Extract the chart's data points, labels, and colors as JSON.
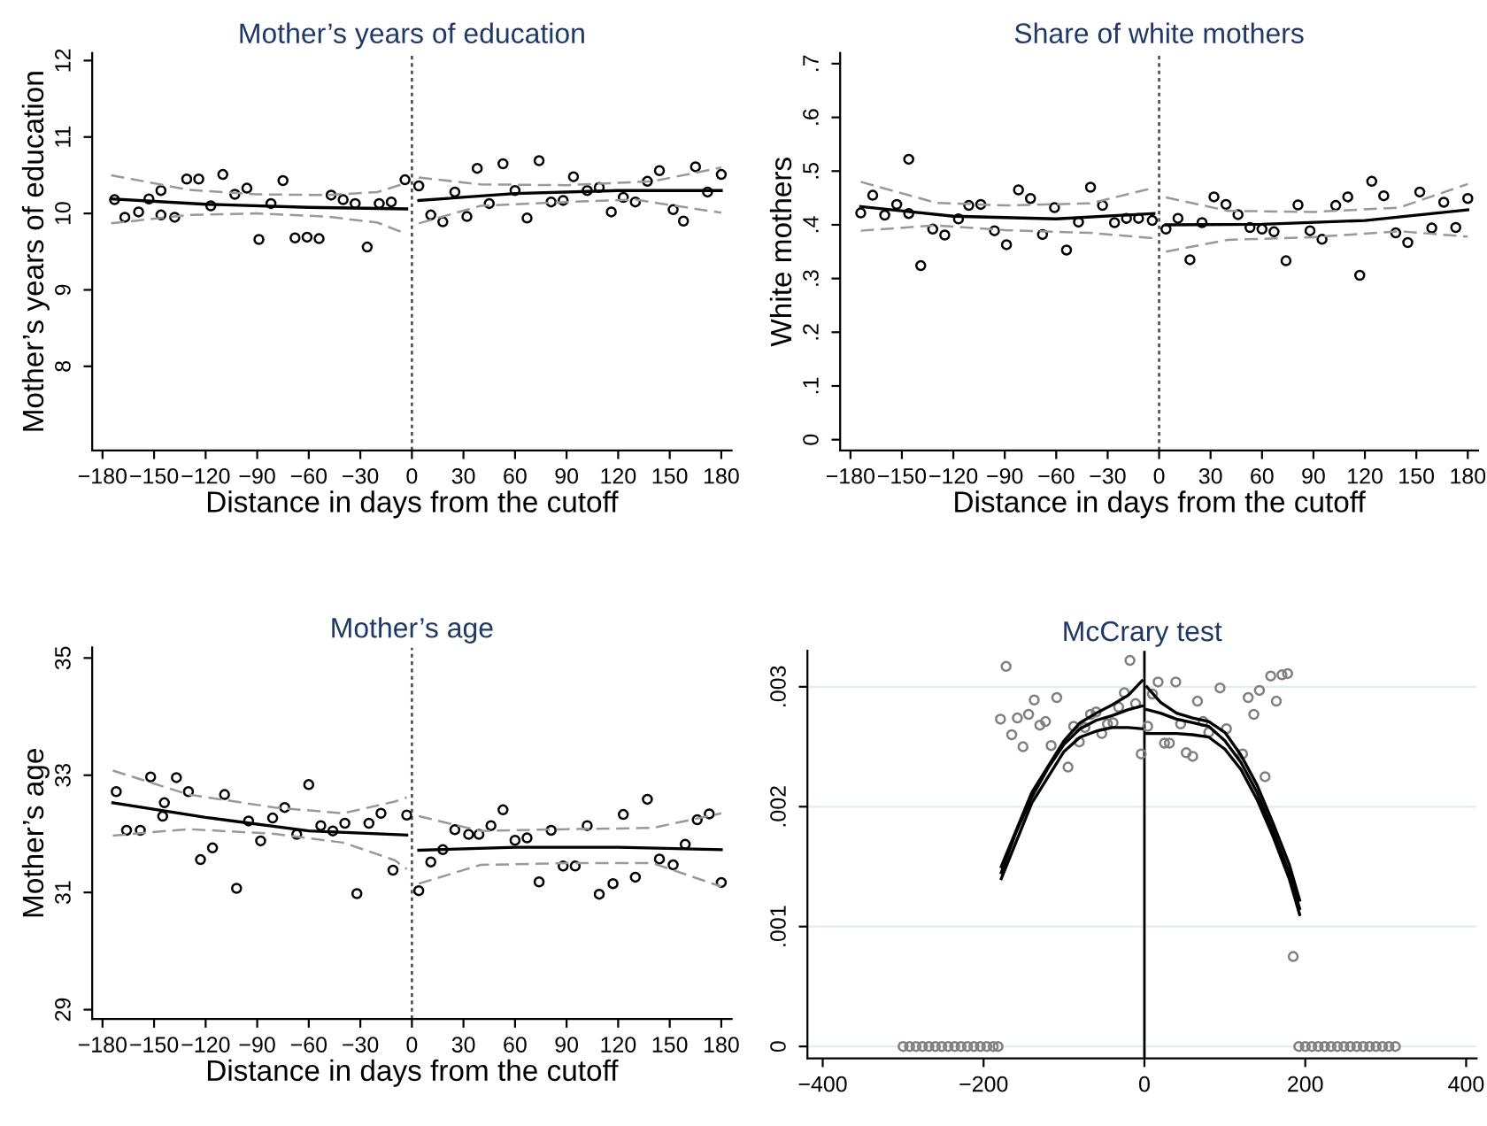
{
  "chart_data": [
    {
      "type": "scatter",
      "title": "Mother’s years of education",
      "xlabel": "Distance in days from the cutoff",
      "ylabel": "Mother’s years of education",
      "xlim": [
        -186,
        186
      ],
      "ylim": [
        6.9,
        12.1
      ],
      "xticks": [
        {
          "value": -180,
          "label": "−180"
        },
        {
          "value": -150,
          "label": "−150"
        },
        {
          "value": -120,
          "label": "−120"
        },
        {
          "value": -90,
          "label": "−90"
        },
        {
          "value": -60,
          "label": "−60"
        },
        {
          "value": -30,
          "label": "−30"
        },
        0,
        30,
        60,
        90,
        120,
        150,
        180
      ],
      "yticks": [
        8,
        9,
        10,
        11,
        12
      ],
      "ref_lines": [
        {
          "axis": "x",
          "value": 0,
          "label": null,
          "color": "#555555",
          "line_style": "dotted"
        }
      ],
      "series": [
        {
          "marker": "circle",
          "color": "#000000",
          "x": [
            -173,
            -167,
            -159,
            -153,
            -146,
            -146,
            -138,
            -131,
            -124,
            -117,
            -110,
            -103,
            -96,
            -89,
            -82,
            -75,
            -68,
            -61,
            -54,
            -47,
            -40,
            -33,
            -26,
            -19,
            -12,
            -4,
            4,
            11,
            18,
            25,
            32,
            38,
            45,
            53,
            60,
            67,
            74,
            81,
            88,
            94,
            102,
            109,
            116,
            123,
            130,
            137,
            144,
            152,
            158,
            165,
            172,
            180
          ],
          "values": [
            10.18,
            9.95,
            10.02,
            10.19,
            10.3,
            9.98,
            9.95,
            10.45,
            10.45,
            10.1,
            10.51,
            10.25,
            10.33,
            9.66,
            10.13,
            10.43,
            9.68,
            9.69,
            9.67,
            10.24,
            10.18,
            10.13,
            9.56,
            10.13,
            10.15,
            10.44,
            10.36,
            9.98,
            9.89,
            10.28,
            9.96,
            10.59,
            10.13,
            10.65,
            10.3,
            9.94,
            10.69,
            10.15,
            10.17,
            10.48,
            10.3,
            10.34,
            10.02,
            10.21,
            10.15,
            10.42,
            10.56,
            10.05,
            9.9,
            10.61,
            10.28,
            10.51
          ]
        },
        {
          "type": "line",
          "color": "#000000",
          "line_style": "solid",
          "x": [
            -175,
            -120,
            -60,
            -3
          ],
          "values": [
            10.19,
            10.12,
            10.08,
            10.06
          ]
        },
        {
          "type": "line",
          "color": "#999999",
          "line_style": "dashed",
          "x": [
            -175,
            -130,
            -90,
            -50,
            -20,
            -3
          ],
          "values": [
            10.5,
            10.31,
            10.25,
            10.24,
            10.28,
            10.4
          ]
        },
        {
          "type": "line",
          "color": "#999999",
          "line_style": "dashed",
          "x": [
            -175,
            -130,
            -90,
            -50,
            -20,
            -3
          ],
          "values": [
            9.87,
            9.98,
            10.0,
            9.96,
            9.88,
            9.73
          ]
        },
        {
          "type": "line",
          "color": "#000000",
          "line_style": "solid",
          "x": [
            4,
            60,
            120,
            180
          ],
          "values": [
            10.17,
            10.26,
            10.3,
            10.3
          ]
        },
        {
          "type": "line",
          "color": "#999999",
          "line_style": "dashed",
          "x": [
            4,
            40,
            90,
            140,
            180
          ],
          "values": [
            10.47,
            10.38,
            10.37,
            10.42,
            10.6
          ]
        },
        {
          "type": "line",
          "color": "#999999",
          "line_style": "dashed",
          "x": [
            4,
            40,
            90,
            130,
            180
          ],
          "values": [
            9.87,
            10.1,
            10.15,
            10.18,
            10.01
          ]
        }
      ]
    },
    {
      "type": "scatter",
      "title": "Share of white mothers",
      "xlabel": "Distance in days from the cutoff",
      "ylabel": "White mothers",
      "xlim": [
        -186,
        186
      ],
      "ylim": [
        -0.02,
        0.72
      ],
      "xticks": [
        {
          "value": -180,
          "label": "−180"
        },
        {
          "value": -150,
          "label": "−150"
        },
        {
          "value": -120,
          "label": "−120"
        },
        {
          "value": -90,
          "label": "−90"
        },
        {
          "value": -60,
          "label": "−60"
        },
        {
          "value": -30,
          "label": "−30"
        },
        0,
        30,
        60,
        90,
        120,
        150,
        180
      ],
      "yticks": [
        0,
        {
          "value": 0.1,
          "label": ".1"
        },
        {
          "value": 0.2,
          "label": ".2"
        },
        {
          "value": 0.3,
          "label": ".3"
        },
        {
          "value": 0.4,
          "label": ".4"
        },
        {
          "value": 0.5,
          "label": ".5"
        },
        {
          "value": 0.6,
          "label": ".6"
        },
        {
          "value": 0.7,
          "label": ".7"
        }
      ],
      "ref_lines": [
        {
          "axis": "x",
          "value": 0,
          "label": null,
          "color": "#555555",
          "line_style": "dotted"
        }
      ],
      "series": [
        {
          "marker": "circle",
          "color": "#000000",
          "x": [
            -174,
            -167,
            -160,
            -153,
            -146,
            -146,
            -139,
            -132,
            -125,
            -117,
            -111,
            -104,
            -96,
            -89,
            -82,
            -75,
            -68,
            -61,
            -54,
            -47,
            -40,
            -33,
            -26,
            -19,
            -12,
            -4,
            4,
            11,
            18,
            25,
            32,
            39,
            46,
            53,
            60,
            67,
            74,
            81,
            88,
            95,
            103,
            110,
            117,
            124,
            131,
            138,
            145,
            152,
            159,
            166,
            173,
            180
          ],
          "values": [
            0.422,
            0.455,
            0.418,
            0.438,
            0.522,
            0.421,
            0.324,
            0.392,
            0.381,
            0.411,
            0.436,
            0.438,
            0.389,
            0.363,
            0.465,
            0.449,
            0.382,
            0.432,
            0.353,
            0.405,
            0.47,
            0.436,
            0.404,
            0.412,
            0.412,
            0.408,
            0.392,
            0.412,
            0.335,
            0.404,
            0.452,
            0.438,
            0.419,
            0.395,
            0.392,
            0.387,
            0.333,
            0.437,
            0.389,
            0.373,
            0.436,
            0.452,
            0.306,
            0.481,
            0.454,
            0.385,
            0.367,
            0.461,
            0.394,
            0.442,
            0.395,
            0.449
          ]
        },
        {
          "type": "line",
          "color": "#000000",
          "line_style": "solid",
          "x": [
            -174,
            -120,
            -60,
            -3
          ],
          "values": [
            0.434,
            0.416,
            0.411,
            0.421
          ]
        },
        {
          "type": "line",
          "color": "#999999",
          "line_style": "dashed",
          "x": [
            -174,
            -130,
            -90,
            -40,
            -3
          ],
          "values": [
            0.48,
            0.441,
            0.436,
            0.44,
            0.469
          ]
        },
        {
          "type": "line",
          "color": "#999999",
          "line_style": "dashed",
          "x": [
            -174,
            -130,
            -90,
            -40,
            -3
          ],
          "values": [
            0.389,
            0.399,
            0.39,
            0.385,
            0.375
          ]
        },
        {
          "type": "line",
          "color": "#000000",
          "line_style": "solid",
          "x": [
            4,
            60,
            120,
            180
          ],
          "values": [
            0.4,
            0.401,
            0.408,
            0.428
          ]
        },
        {
          "type": "line",
          "color": "#999999",
          "line_style": "dashed",
          "x": [
            4,
            40,
            90,
            140,
            180
          ],
          "values": [
            0.451,
            0.426,
            0.424,
            0.432,
            0.476
          ]
        },
        {
          "type": "line",
          "color": "#999999",
          "line_style": "dashed",
          "x": [
            4,
            40,
            90,
            140,
            180
          ],
          "values": [
            0.35,
            0.372,
            0.377,
            0.388,
            0.378
          ]
        }
      ]
    },
    {
      "type": "scatter",
      "title": "Mother’s age",
      "xlabel": "Distance in days from the cutoff",
      "ylabel": "Mother’s age",
      "xlim": [
        -186,
        186
      ],
      "ylim": [
        28.84,
        35.18
      ],
      "xticks": [
        {
          "value": -180,
          "label": "−180"
        },
        {
          "value": -150,
          "label": "−150"
        },
        {
          "value": -120,
          "label": "−120"
        },
        {
          "value": -90,
          "label": "−90"
        },
        {
          "value": -60,
          "label": "−60"
        },
        {
          "value": -30,
          "label": "−30"
        },
        0,
        30,
        60,
        90,
        120,
        150,
        180
      ],
      "yticks": [
        29,
        31,
        33,
        35
      ],
      "ref_lines": [
        {
          "axis": "x",
          "value": 0,
          "label": null,
          "color": "#555555",
          "line_style": "dotted"
        }
      ],
      "series": [
        {
          "marker": "circle",
          "color": "#000000",
          "x": [
            -172,
            -166,
            -158,
            -152,
            -144,
            -145,
            -137,
            -130,
            -123,
            -116,
            -109,
            -102,
            -95,
            -88,
            -81,
            -74,
            -67,
            -60,
            -53,
            -46,
            -39,
            -32,
            -25,
            -18,
            -11,
            -3,
            4,
            11,
            18,
            25,
            33,
            39,
            46,
            53,
            60,
            67,
            74,
            81,
            88,
            95,
            102,
            109,
            117,
            123,
            130,
            137,
            144,
            152,
            159,
            166,
            173,
            180
          ],
          "values": [
            32.72,
            32.06,
            32.06,
            32.97,
            32.53,
            32.3,
            32.96,
            32.72,
            31.56,
            31.76,
            32.67,
            31.07,
            32.22,
            31.88,
            32.27,
            32.45,
            31.99,
            32.84,
            32.14,
            32.05,
            32.18,
            30.98,
            32.18,
            32.35,
            31.38,
            32.32,
            31.03,
            31.52,
            31.73,
            32.07,
            31.99,
            31.99,
            32.14,
            32.41,
            31.89,
            31.93,
            31.18,
            32.06,
            31.45,
            31.45,
            32.14,
            30.97,
            31.15,
            32.33,
            31.26,
            32.59,
            31.57,
            31.47,
            31.82,
            32.24,
            32.34,
            31.17
          ]
        },
        {
          "type": "line",
          "color": "#000000",
          "line_style": "solid",
          "x": [
            -174,
            -120,
            -60,
            -3
          ],
          "values": [
            32.53,
            32.28,
            32.05,
            31.98
          ]
        },
        {
          "type": "line",
          "color": "#999999",
          "line_style": "dashed",
          "x": [
            -174,
            -130,
            -80,
            -40,
            -10,
            -3
          ],
          "values": [
            33.08,
            32.67,
            32.45,
            32.35,
            32.55,
            32.62
          ]
        },
        {
          "type": "line",
          "color": "#999999",
          "line_style": "dashed",
          "x": [
            -174,
            -130,
            -80,
            -40,
            -10,
            -3
          ],
          "values": [
            31.97,
            32.08,
            32.0,
            31.85,
            31.55,
            31.4
          ]
        },
        {
          "type": "line",
          "color": "#000000",
          "line_style": "solid",
          "x": [
            4,
            60,
            120,
            180
          ],
          "values": [
            31.72,
            31.77,
            31.77,
            31.73
          ]
        },
        {
          "type": "line",
          "color": "#999999",
          "line_style": "dashed",
          "x": [
            4,
            40,
            90,
            140,
            180
          ],
          "values": [
            32.3,
            32.05,
            32.08,
            32.1,
            32.35
          ]
        },
        {
          "type": "line",
          "color": "#999999",
          "line_style": "dashed",
          "x": [
            4,
            40,
            90,
            140,
            180
          ],
          "values": [
            31.15,
            31.47,
            31.5,
            31.5,
            31.1
          ]
        }
      ]
    },
    {
      "type": "scatter",
      "title": "McCrary test",
      "grid": "y",
      "xlim": [
        -419,
        413
      ],
      "ylim": [
        -0.0001,
        0.0033
      ],
      "xticks": [
        {
          "value": -400,
          "label": "−400"
        },
        {
          "value": -200,
          "label": "−200"
        },
        0,
        200,
        400
      ],
      "yticks": [
        0,
        {
          "value": 0.001,
          "label": ".001"
        },
        {
          "value": 0.002,
          "label": ".002"
        },
        {
          "value": 0.003,
          "label": ".003"
        }
      ],
      "ref_lines": [
        {
          "axis": "x",
          "value": 0,
          "label": null,
          "color": "#000000",
          "line_style": "solid"
        }
      ],
      "series": [
        {
          "marker": "circle",
          "color": "#808080",
          "x": [
            -300,
            -292,
            -284,
            -276,
            -268,
            -260,
            -252,
            -244,
            -236,
            -228,
            -220,
            -212,
            -204,
            -196,
            -188,
            -182,
            192,
            200,
            208,
            216,
            224,
            232,
            240,
            248,
            256,
            264,
            272,
            280,
            288,
            296,
            304,
            312
          ],
          "values": [
            0,
            0,
            0,
            0,
            0,
            0,
            0,
            0,
            0,
            0,
            0,
            0,
            0,
            0,
            0,
            0,
            0,
            0,
            0,
            0,
            0,
            0,
            0,
            0,
            0,
            0,
            0,
            0,
            0,
            0,
            0,
            0
          ]
        },
        {
          "marker": "circle",
          "color": "#808080",
          "x": [
            -179,
            -172,
            -165,
            -158,
            -151,
            -144,
            -137,
            -130,
            -123,
            -116,
            -109,
            -95,
            -88,
            -81,
            -74,
            -67,
            -60,
            -53,
            -46,
            -39,
            -32,
            -25,
            -18,
            -11,
            -4,
            4,
            10,
            17,
            25,
            31,
            39,
            45,
            52,
            60,
            66,
            73,
            80,
            94,
            102,
            122,
            129,
            136,
            143,
            150,
            157,
            164,
            171,
            178,
            185
          ],
          "values": [
            0.00273,
            0.00317,
            0.0026,
            0.00274,
            0.0025,
            0.00277,
            0.00289,
            0.00268,
            0.00271,
            0.00251,
            0.00291,
            0.00233,
            0.00267,
            0.00254,
            0.00266,
            0.00277,
            0.00279,
            0.00261,
            0.00269,
            0.0027,
            0.00283,
            0.00295,
            0.00322,
            0.00286,
            0.00244,
            0.00267,
            0.00294,
            0.00304,
            0.00253,
            0.00253,
            0.00304,
            0.00269,
            0.00245,
            0.00242,
            0.00288,
            0.00271,
            0.00262,
            0.00299,
            0.00265,
            0.00244,
            0.00291,
            0.00277,
            0.00297,
            0.00225,
            0.00309,
            0.00288,
            0.0031,
            0.00311,
            0.00075
          ]
        },
        {
          "type": "line",
          "color": "#000000",
          "line_style": "solid",
          "x": [
            -178,
            -160,
            -140,
            -120,
            -100,
            -80,
            -60,
            -40,
            -20,
            -3
          ],
          "values": [
            0.00145,
            0.00178,
            0.00208,
            0.00232,
            0.00252,
            0.00265,
            0.00272,
            0.00276,
            0.00281,
            0.00284
          ]
        },
        {
          "type": "line",
          "color": "#000000",
          "line_style": "solid",
          "x": [
            -178,
            -140,
            -100,
            -80,
            -60,
            -40,
            -20,
            -3
          ],
          "values": [
            0.0015,
            0.00212,
            0.00255,
            0.0027,
            0.00278,
            0.00285,
            0.00293,
            0.00305
          ]
        },
        {
          "type": "line",
          "color": "#000000",
          "line_style": "solid",
          "x": [
            -178,
            -140,
            -100,
            -80,
            -60,
            -40,
            -20,
            -3
          ],
          "values": [
            0.0014,
            0.00203,
            0.00246,
            0.00258,
            0.00263,
            0.00266,
            0.00266,
            0.00265
          ]
        },
        {
          "type": "line",
          "color": "#000000",
          "line_style": "solid",
          "x": [
            3,
            20,
            40,
            60,
            80,
            100,
            120,
            140,
            160,
            180,
            193
          ],
          "values": [
            0.00281,
            0.00278,
            0.00273,
            0.0027,
            0.00267,
            0.00255,
            0.00237,
            0.00212,
            0.0018,
            0.00145,
            0.00115
          ]
        },
        {
          "type": "line",
          "color": "#000000",
          "line_style": "solid",
          "x": [
            3,
            20,
            40,
            60,
            80,
            100,
            120,
            140,
            160,
            180,
            193
          ],
          "values": [
            0.003,
            0.00287,
            0.00278,
            0.00274,
            0.00271,
            0.00262,
            0.00243,
            0.00218,
            0.00186,
            0.00152,
            0.00122
          ]
        },
        {
          "type": "line",
          "color": "#000000",
          "line_style": "solid",
          "x": [
            3,
            20,
            40,
            60,
            80,
            100,
            120,
            140,
            160,
            180,
            193
          ],
          "values": [
            0.00261,
            0.00261,
            0.00261,
            0.0026,
            0.00258,
            0.00248,
            0.00231,
            0.00206,
            0.00175,
            0.0014,
            0.0011
          ]
        }
      ]
    }
  ]
}
